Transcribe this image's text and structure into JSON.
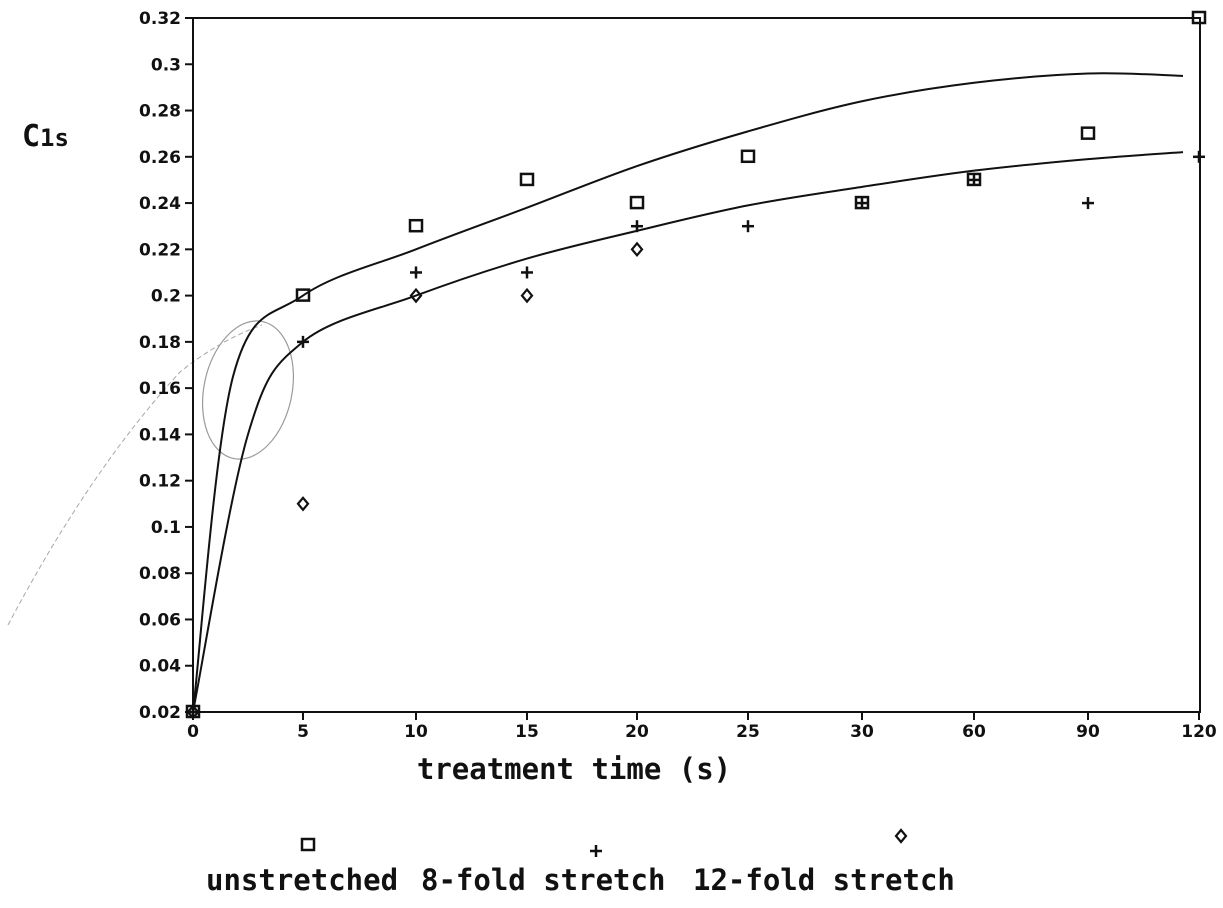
{
  "chart_data": {
    "type": "scatter",
    "title": "",
    "ylabel": "C",
    "ylabel_subscript": "1s",
    "xlabel": "treatment time (s)",
    "categories": [
      "0",
      "5",
      "10",
      "15",
      "20",
      "25",
      "30",
      "60",
      "90",
      "120"
    ],
    "y_ticks": [
      "0.02",
      "0.04",
      "0.06",
      "0.08",
      "0.1",
      "0.12",
      "0.14",
      "0.16",
      "0.18",
      "0.2",
      "0.22",
      "0.24",
      "0.26",
      "0.28",
      "0.3",
      "0.32"
    ],
    "ylim": [
      0.02,
      0.32
    ],
    "grid": false,
    "legend_position": "bottom",
    "series": [
      {
        "name": "unstretched",
        "marker": "square",
        "values": [
          0.02,
          0.2,
          0.23,
          0.25,
          0.24,
          0.26,
          0.24,
          0.25,
          0.27,
          0.32
        ]
      },
      {
        "name": "8-fold stretch",
        "marker": "plus",
        "values": [
          0.02,
          0.18,
          0.21,
          0.21,
          0.23,
          0.23,
          0.24,
          0.25,
          0.24,
          0.26
        ]
      },
      {
        "name": "12-fold stretch",
        "marker": "diamond",
        "values": [
          0.02,
          0.11,
          0.2,
          0.2,
          0.22,
          null,
          null,
          null,
          null,
          null
        ]
      }
    ],
    "fit_curves": [
      {
        "values": [
          0.02,
          0.2,
          0.22,
          0.238,
          0.256,
          0.271,
          0.284,
          0.292,
          0.296,
          0.295
        ]
      },
      {
        "values": [
          0.02,
          0.18,
          0.2,
          0.216,
          0.228,
          0.239,
          0.247,
          0.254,
          0.259,
          0.262
        ]
      }
    ]
  }
}
